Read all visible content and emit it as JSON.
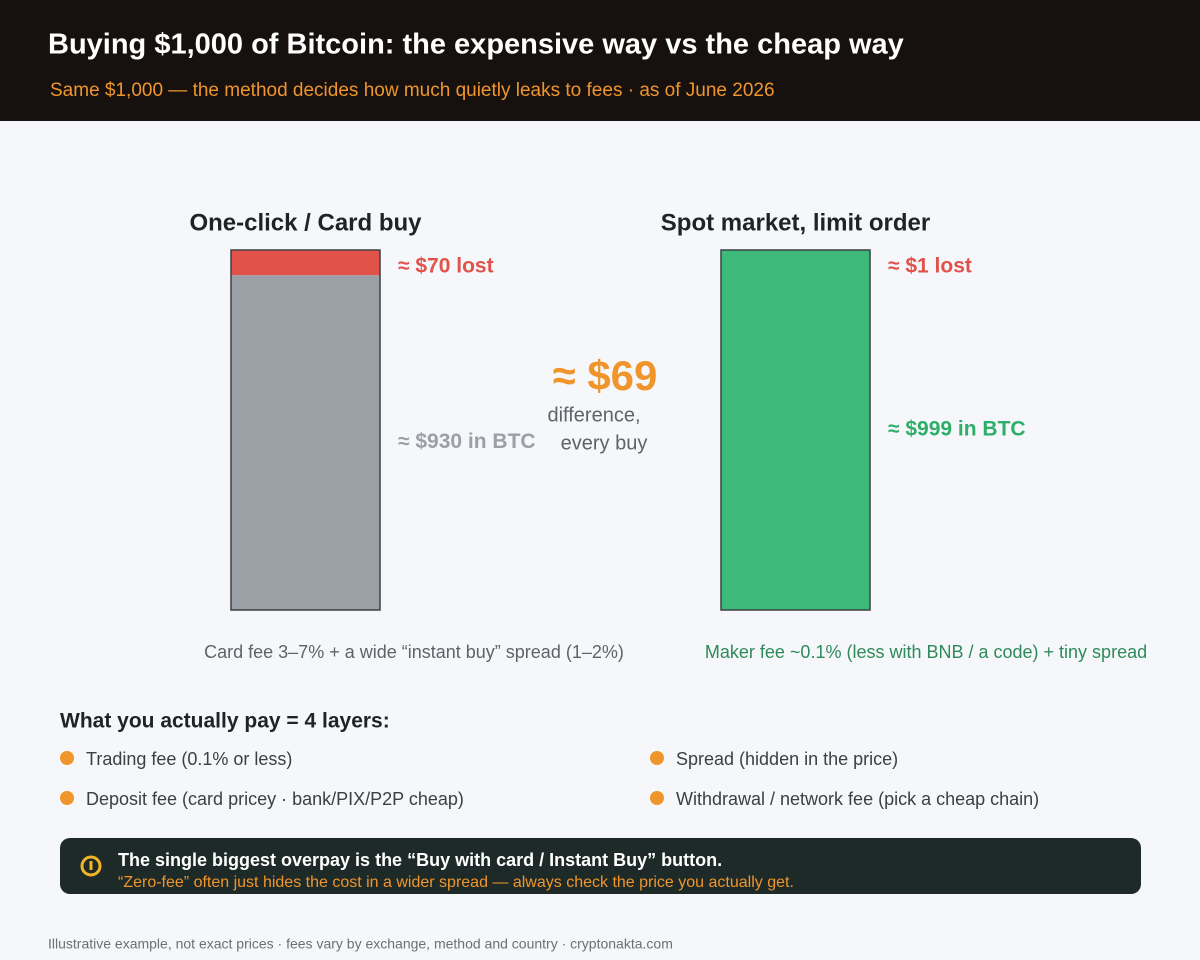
{
  "header": {
    "title": "Buying $1,000 of Bitcoin: the expensive way vs the cheap way",
    "subtitle": "Same $1,000 — the method decides how much quietly leaks to fees · as of June 2026"
  },
  "chart_data": {
    "type": "stacked-bar",
    "categories": [
      "One-click / Card buy",
      "Spot market, limit order"
    ],
    "ylim": [
      0,
      1000
    ],
    "series": [
      {
        "values": [
          70,
          1
        ],
        "value_labels": [
          "≈ $70 lost",
          "≈ $1 lost"
        ],
        "color": "#e0524a",
        "label_colors": [
          "#e0524a",
          "#e0524a"
        ]
      },
      {
        "values": [
          930,
          999
        ],
        "value_labels": [
          "≈ $930 in BTC",
          "≈ $999 in BTC"
        ],
        "colors": [
          "#9aa0a6",
          "#3dba7a"
        ],
        "label_colors": [
          "#9aa0a6",
          "#2fae6a"
        ]
      }
    ],
    "notes": [
      "Card fee 3–7% + a wide “instant buy” spread (1–2%)",
      "Maker fee ~0.1% (less with BNB / a code) + tiny spread"
    ],
    "note_colors": [
      "#5f6368",
      "#2f8a5a"
    ],
    "difference": {
      "label": "≈ $69",
      "caption": [
        "difference,",
        "every buy"
      ]
    }
  },
  "layers": {
    "title": "What you actually pay = 4 layers:",
    "items": [
      "Trading fee (0.1% or less)",
      "Spread (hidden in the price)",
      "Deposit fee (card pricey · bank/PIX/P2P cheap)",
      "Withdrawal / network fee (pick a cheap chain)"
    ]
  },
  "callout": {
    "title": "The single biggest overpay is the “Buy with card / Instant Buy” button.",
    "text": "“Zero-fee” often just hides the cost in a wider spread — always check the price you actually get."
  },
  "footer": "Illustrative example, not exact prices · fees vary by exchange, method and country · cryptonakta.com"
}
